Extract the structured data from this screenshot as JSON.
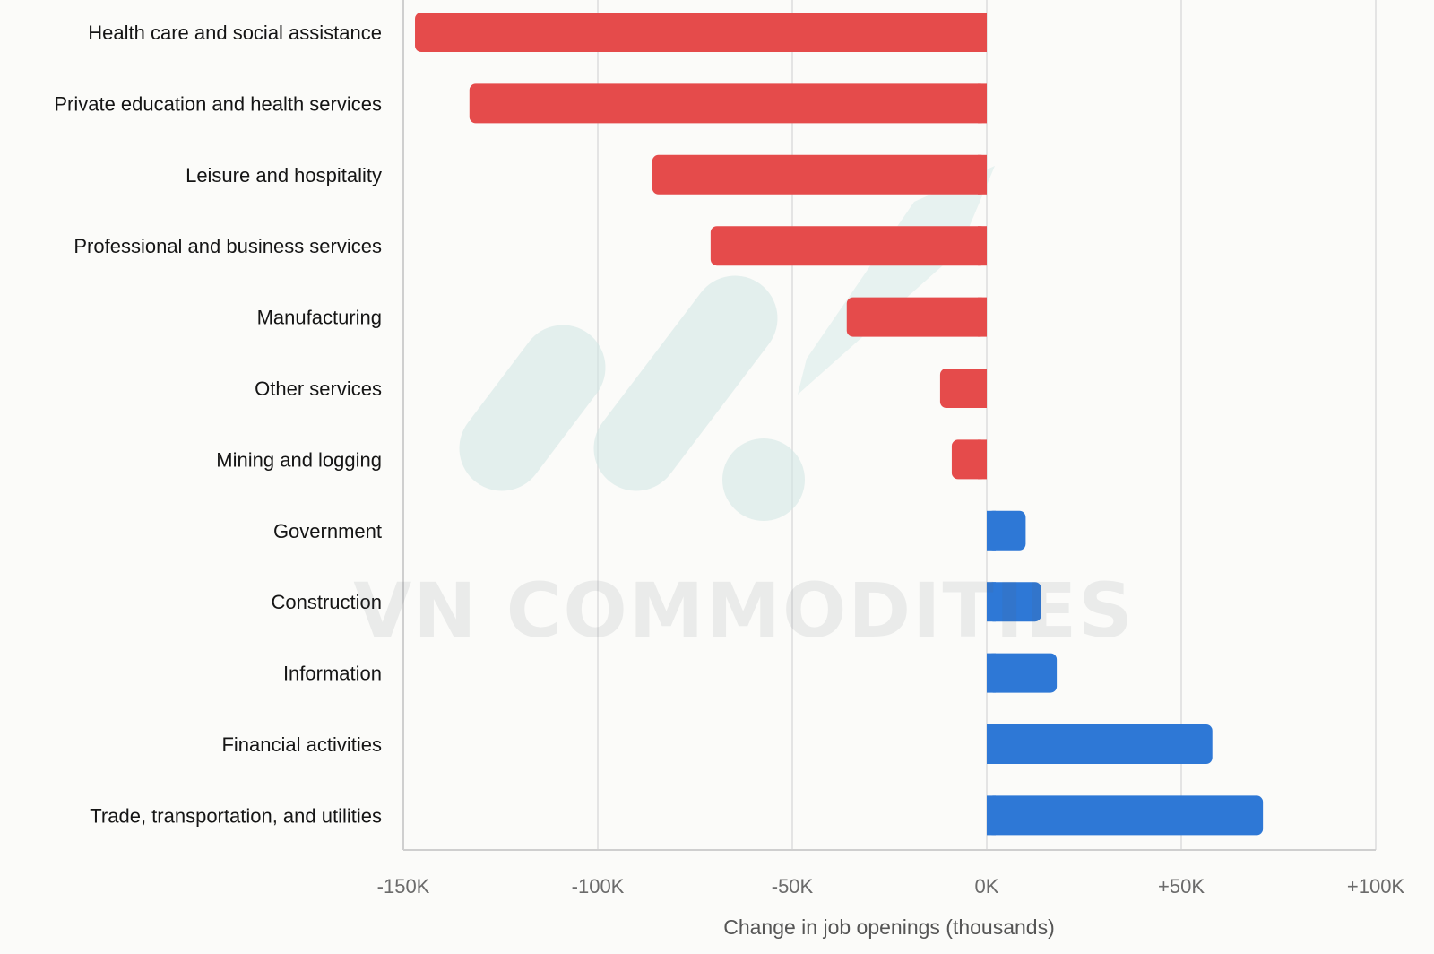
{
  "chart_data": {
    "type": "bar",
    "orientation": "horizontal",
    "categories": [
      "Health care and social assistance",
      "Private education and health services",
      "Leisure and hospitality",
      "Professional and business services",
      "Manufacturing",
      "Other services",
      "Mining and logging",
      "Government",
      "Construction",
      "Information",
      "Financial activities",
      "Trade, transportation, and utilities"
    ],
    "values": [
      -147,
      -133,
      -86,
      -71,
      -36,
      -12,
      -9,
      10,
      14,
      18,
      58,
      71
    ],
    "title": "",
    "xlabel": "Change in job openings (thousands)",
    "ylabel": "",
    "xlim": [
      -150,
      100
    ],
    "x_ticks": [
      -150,
      -100,
      -50,
      0,
      50,
      100
    ],
    "x_tick_labels": [
      "-150K",
      "-100K",
      "-50K",
      "0K",
      "+50K",
      "+100K"
    ],
    "grid": true,
    "legend": "none",
    "colors": {
      "negative": "#e54b4b",
      "positive": "#2e78d6"
    }
  },
  "watermark": {
    "text": "VN COMMODITIES"
  }
}
